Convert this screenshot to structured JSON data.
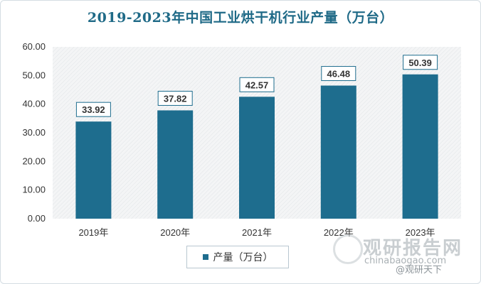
{
  "chart_data": {
    "type": "bar",
    "title": "2019-2023年中国工业烘干机行业产量（万台）",
    "categories": [
      "2019年",
      "2020年",
      "2021年",
      "2022年",
      "2023年"
    ],
    "series": [
      {
        "name": "产量（万台）",
        "values": [
          33.92,
          37.82,
          42.57,
          46.48,
          50.39
        ]
      }
    ],
    "data_labels": [
      "33.92",
      "37.82",
      "42.57",
      "46.48",
      "50.39"
    ],
    "yticks": [
      "0.00",
      "10.00",
      "20.00",
      "30.00",
      "40.00",
      "50.00",
      "60.00"
    ],
    "ylim": [
      0,
      60
    ],
    "xlabel": "",
    "ylabel": "",
    "grid": false,
    "legend_position": "bottom",
    "bar_color": "#1e6d8e",
    "plot_background": "hatched light grey"
  },
  "watermark": {
    "brand": "观研报告网",
    "url": "chinabaogao.com",
    "source": "@观研天下"
  }
}
